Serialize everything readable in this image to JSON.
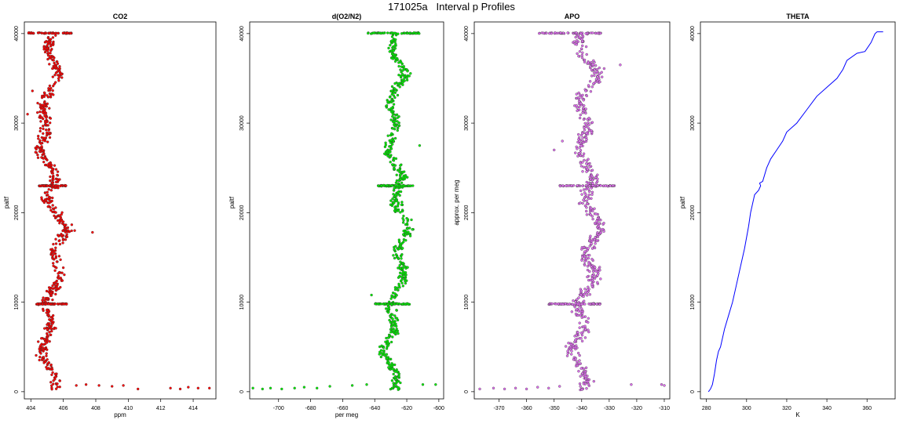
{
  "page_title": "171025a   Interval p Profiles",
  "chart_data": [
    {
      "type": "scatter",
      "title": "CO2",
      "xlabel": "ppm",
      "ylabel": "paltf",
      "color": "#ff0000",
      "xlim": [
        403.6,
        415.4
      ],
      "ylim": [
        -800,
        41300
      ],
      "xticks": [
        404,
        406,
        408,
        410,
        412,
        414
      ],
      "yticks": [
        0,
        10000,
        20000,
        30000,
        40000
      ],
      "center": [
        [
          0,
          405.4
        ],
        [
          3000,
          405.1
        ],
        [
          6000,
          404.8
        ],
        [
          10000,
          405.2
        ],
        [
          14000,
          405.6
        ],
        [
          18000,
          405.9
        ],
        [
          22000,
          405.3
        ],
        [
          26000,
          405.0
        ],
        [
          30000,
          404.6
        ],
        [
          33000,
          405.2
        ],
        [
          36000,
          405.5
        ],
        [
          40000,
          405.2
        ]
      ],
      "spread": 0.5,
      "dense_bands": [
        {
          "y": 40050,
          "x_from": 403.8,
          "x_to": 406.6
        },
        {
          "y": 23000,
          "x_from": 404.5,
          "x_to": 406.2
        },
        {
          "y": 9800,
          "x_from": 404.3,
          "x_to": 406.3
        }
      ],
      "surface_points": [
        [
          406.8,
          700
        ],
        [
          407.4,
          800
        ],
        [
          408.2,
          700
        ],
        [
          409.0,
          600
        ],
        [
          409.7,
          700
        ],
        [
          410.6,
          300
        ],
        [
          412.6,
          400
        ],
        [
          413.2,
          300
        ],
        [
          413.7,
          500
        ],
        [
          414.3,
          400
        ],
        [
          415.0,
          400
        ]
      ],
      "outliers": [
        [
          407.8,
          17800
        ],
        [
          406.7,
          18000
        ],
        [
          403.8,
          31000
        ],
        [
          404.1,
          33600
        ]
      ]
    },
    {
      "type": "scatter",
      "title": "d(O2/N2)",
      "xlabel": "per meg",
      "ylabel": "paltf",
      "color": "#00ee00",
      "xlim": [
        -718,
        -597
      ],
      "ylim": [
        -800,
        41300
      ],
      "xticks": [
        -700,
        -680,
        -660,
        -640,
        -620,
        -600
      ],
      "yticks": [
        0,
        10000,
        20000,
        30000,
        40000
      ],
      "center": [
        [
          0,
          -628
        ],
        [
          3000,
          -630
        ],
        [
          6000,
          -632
        ],
        [
          10000,
          -627
        ],
        [
          14000,
          -624
        ],
        [
          18000,
          -622
        ],
        [
          22000,
          -625
        ],
        [
          26000,
          -628
        ],
        [
          30000,
          -630
        ],
        [
          33000,
          -626
        ],
        [
          36000,
          -624
        ],
        [
          40000,
          -628
        ]
      ],
      "spread": 5,
      "dense_bands": [
        {
          "y": 40050,
          "x_from": -645,
          "x_to": -612
        },
        {
          "y": 23000,
          "x_from": -638,
          "x_to": -616
        },
        {
          "y": 9800,
          "x_from": -640,
          "x_to": -618
        }
      ],
      "surface_points": [
        [
          -716,
          400
        ],
        [
          -710,
          300
        ],
        [
          -705,
          400
        ],
        [
          -698,
          300
        ],
        [
          -690,
          400
        ],
        [
          -684,
          500
        ],
        [
          -676,
          400
        ],
        [
          -668,
          600
        ],
        [
          -654,
          700
        ],
        [
          -645,
          800
        ],
        [
          -610,
          800
        ],
        [
          -602,
          800
        ]
      ],
      "outliers": [
        [
          -633,
          26800
        ],
        [
          -612,
          27500
        ],
        [
          -642,
          10800
        ]
      ]
    },
    {
      "type": "scatter",
      "title": "APO",
      "xlabel": "",
      "ylabel": "approx. per meg",
      "color": "#e070f0",
      "xlim": [
        -379,
        -308
      ],
      "ylim": [
        -800,
        41300
      ],
      "xticks": [
        -370,
        -360,
        -350,
        -340,
        -330,
        -320,
        -310
      ],
      "yticks": [
        0,
        10000,
        20000,
        30000,
        40000
      ],
      "center": [
        [
          0,
          -340
        ],
        [
          3000,
          -341
        ],
        [
          6000,
          -342
        ],
        [
          10000,
          -339
        ],
        [
          14000,
          -337
        ],
        [
          18000,
          -335
        ],
        [
          22000,
          -337
        ],
        [
          26000,
          -339
        ],
        [
          30000,
          -340
        ],
        [
          33000,
          -338
        ],
        [
          36000,
          -336
        ],
        [
          40000,
          -341
        ]
      ],
      "spread": 3.5,
      "dense_bands": [
        {
          "y": 40050,
          "x_from": -356,
          "x_to": -333
        },
        {
          "y": 23000,
          "x_from": -348,
          "x_to": -328
        },
        {
          "y": 9800,
          "x_from": -352,
          "x_to": -333
        }
      ],
      "surface_points": [
        [
          -377,
          300
        ],
        [
          -372,
          400
        ],
        [
          -368,
          300
        ],
        [
          -364,
          400
        ],
        [
          -360,
          300
        ],
        [
          -356,
          500
        ],
        [
          -352,
          400
        ],
        [
          -348,
          600
        ],
        [
          -322,
          800
        ],
        [
          -311,
          800
        ],
        [
          -310,
          700
        ]
      ],
      "outliers": [
        [
          -350,
          27000
        ],
        [
          -347,
          28000
        ],
        [
          -326,
          36500
        ]
      ]
    },
    {
      "type": "line",
      "title": "THETA",
      "xlabel": "K",
      "ylabel": "paltf",
      "color": "#0000ff",
      "xlim": [
        277,
        374
      ],
      "ylim": [
        -800,
        41300
      ],
      "xticks": [
        280,
        300,
        320,
        340,
        360
      ],
      "yticks": [
        0,
        10000,
        20000,
        30000,
        40000
      ],
      "points": [
        [
          281,
          0
        ],
        [
          282,
          300
        ],
        [
          283,
          800
        ],
        [
          284,
          2000
        ],
        [
          285,
          3500
        ],
        [
          286,
          4500
        ],
        [
          287,
          5000
        ],
        [
          289,
          7000
        ],
        [
          291,
          8500
        ],
        [
          293,
          10000
        ],
        [
          295,
          12000
        ],
        [
          297,
          14000
        ],
        [
          299,
          16000
        ],
        [
          301,
          18500
        ],
        [
          302,
          20000
        ],
        [
          304,
          22000
        ],
        [
          306,
          22500
        ],
        [
          307,
          23000
        ],
        [
          306.5,
          23300
        ],
        [
          308,
          23500
        ],
        [
          310,
          25000
        ],
        [
          312,
          26000
        ],
        [
          315,
          27000
        ],
        [
          318,
          28000
        ],
        [
          320,
          29000
        ],
        [
          325,
          30000
        ],
        [
          330,
          31500
        ],
        [
          335,
          33000
        ],
        [
          340,
          34000
        ],
        [
          345,
          35000
        ],
        [
          348,
          36000
        ],
        [
          350,
          37000
        ],
        [
          355,
          37800
        ],
        [
          359,
          38000
        ],
        [
          362,
          39000
        ],
        [
          364,
          40000
        ],
        [
          365,
          40200
        ],
        [
          368,
          40200
        ]
      ]
    }
  ]
}
